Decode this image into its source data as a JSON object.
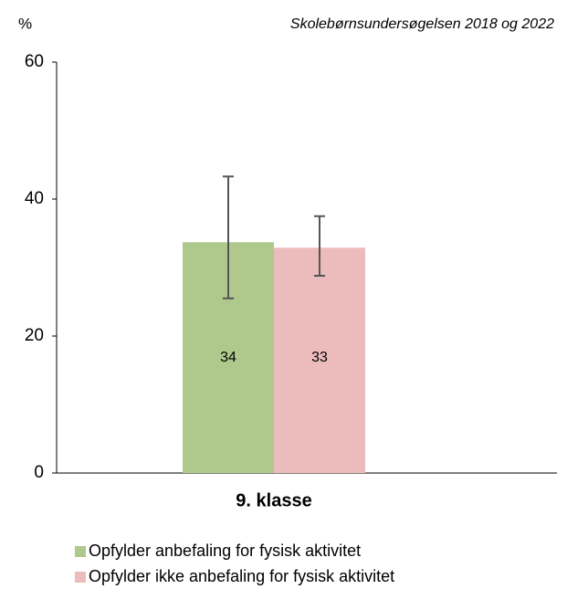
{
  "chart_data": {
    "type": "bar",
    "title": "%",
    "subtitle": "Skolebørnsundersøgelsen 2018 og 2022",
    "categories": [
      "9. klasse"
    ],
    "series": [
      {
        "name": "Opfylder anbefaling for fysisk aktivitet",
        "color": "#afc98d",
        "values": [
          33.7
        ],
        "value_labels": [
          "34"
        ],
        "errors": [
          [
            8.2,
            9.6
          ]
        ]
      },
      {
        "name": "Opfylder ikke anbefaling for fysisk aktivitet",
        "color": "#ecbcbc",
        "values": [
          32.9
        ],
        "value_labels": [
          "33"
        ],
        "errors": [
          [
            4.1,
            4.6
          ]
        ]
      }
    ],
    "ylim": [
      0,
      60
    ],
    "yticks": [
      0,
      20,
      40,
      60
    ],
    "grid": false,
    "legend": "bottom"
  }
}
